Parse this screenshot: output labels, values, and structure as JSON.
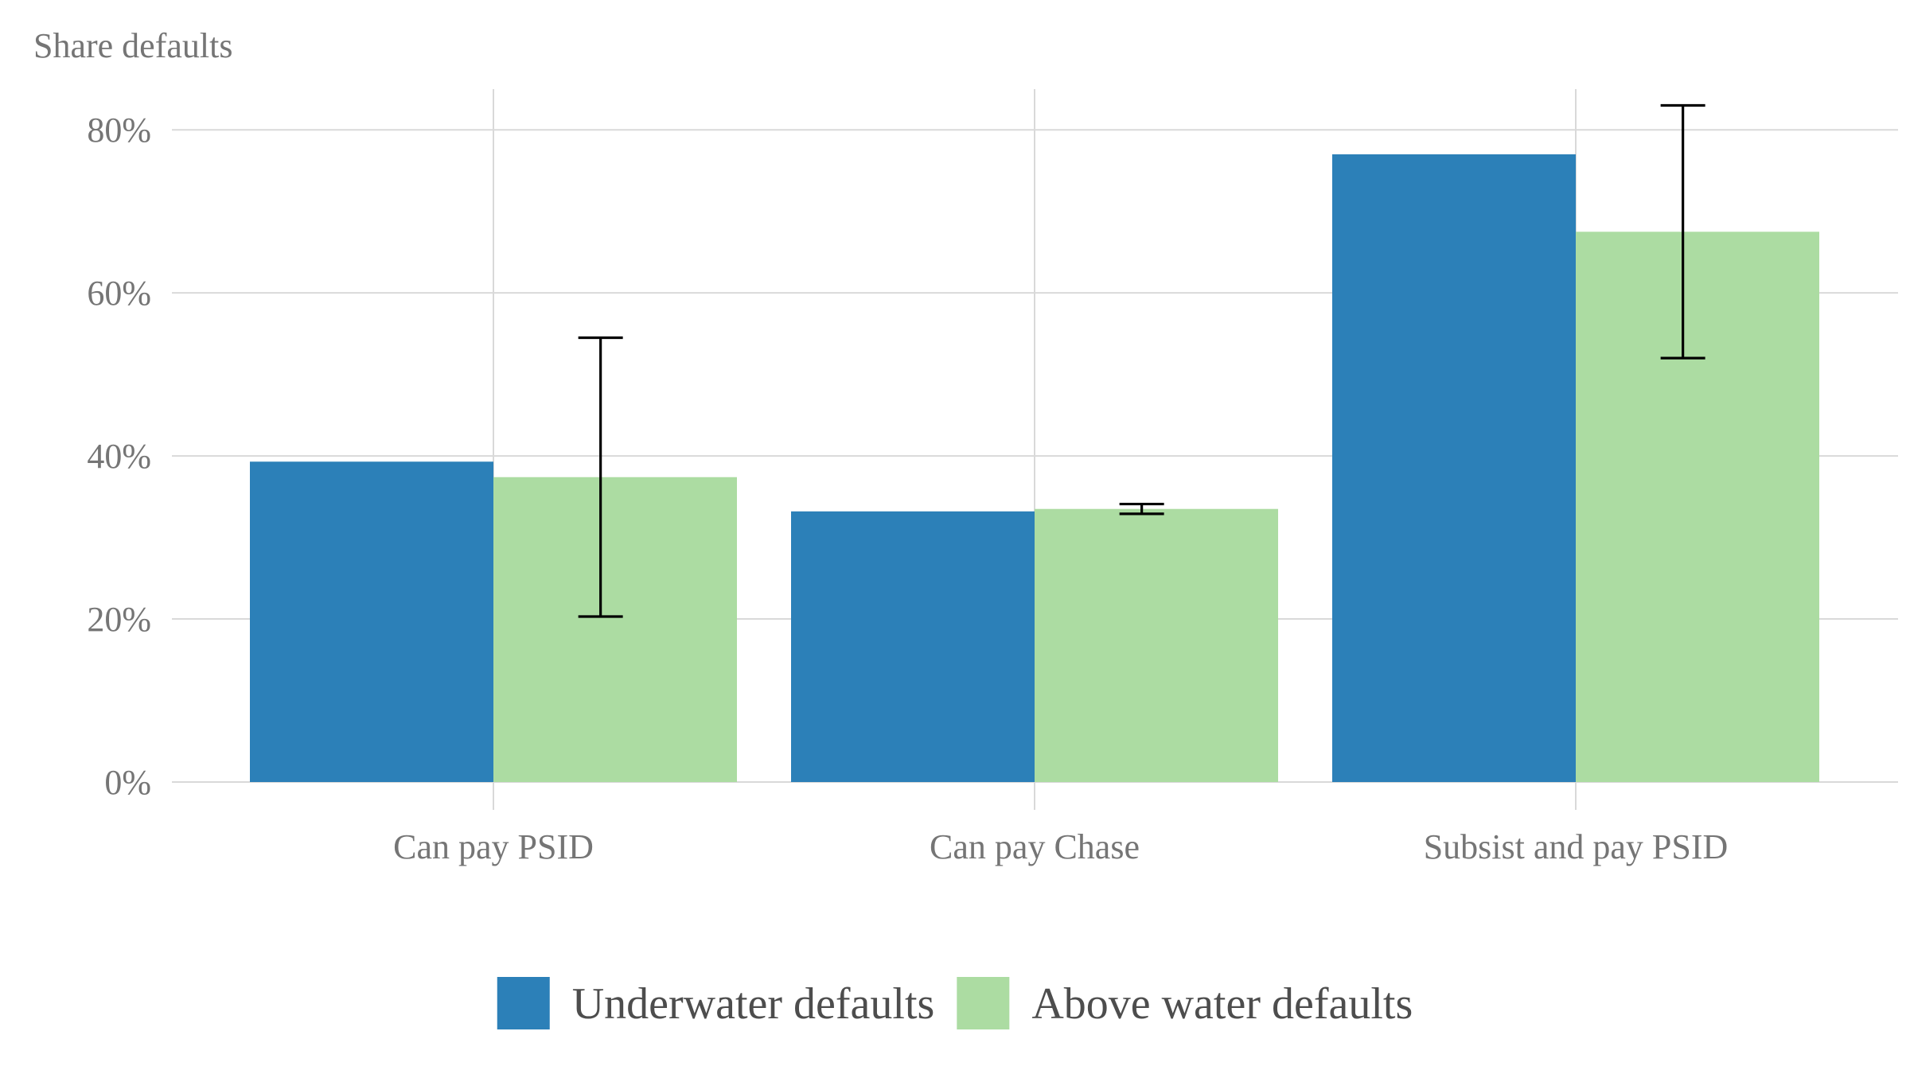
{
  "chart_data": {
    "type": "bar",
    "title": "",
    "ylabel": "Share defaults",
    "xlabel": "",
    "categories": [
      "Can pay PSID",
      "Can pay Chase",
      "Subsist and pay PSID"
    ],
    "series": [
      {
        "name": "Underwater defaults",
        "color": "#2c80b8",
        "values": [
          0.393,
          0.332,
          0.77
        ]
      },
      {
        "name": "Above water defaults",
        "color": "#acdca2",
        "values": [
          0.374,
          0.335,
          0.675
        ],
        "error_low": [
          0.203,
          0.329,
          0.52
        ],
        "error_high": [
          0.545,
          0.341,
          0.83
        ]
      }
    ],
    "ylim": [
      0,
      0.85
    ],
    "yticks": [
      0,
      0.2,
      0.4,
      0.6,
      0.8
    ],
    "ytick_labels": [
      "0%",
      "20%",
      "40%",
      "60%",
      "80%"
    ],
    "grid": true,
    "legend_position": "bottom"
  }
}
